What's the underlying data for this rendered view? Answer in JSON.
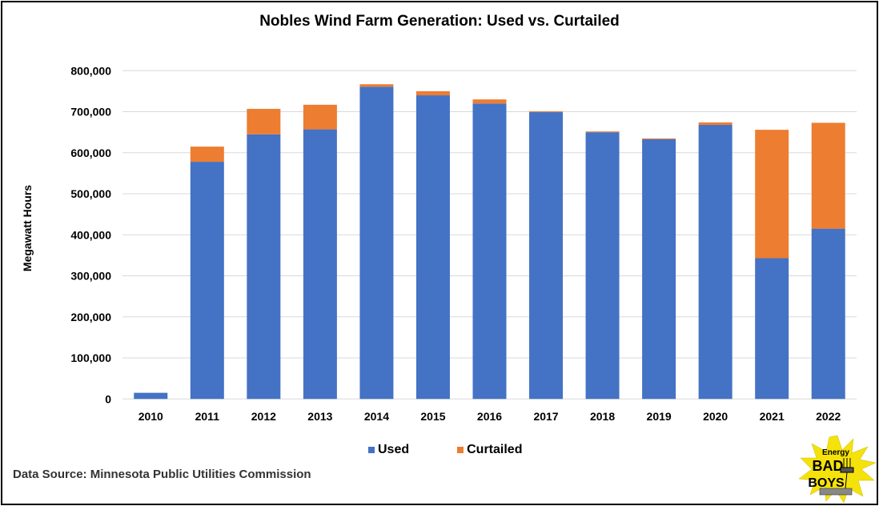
{
  "chart_data": {
    "type": "bar",
    "stacked": true,
    "title": "Nobles Wind Farm Generation: Used vs. Curtailed",
    "xlabel": "",
    "ylabel": "Megawatt Hours",
    "ylim": [
      0,
      800000
    ],
    "yticks": [
      0,
      100000,
      200000,
      300000,
      400000,
      500000,
      600000,
      700000,
      800000
    ],
    "ytick_labels": [
      "0",
      "100,000",
      "200,000",
      "300,000",
      "400,000",
      "500,000",
      "600,000",
      "700,000",
      "800,000"
    ],
    "grid": true,
    "legend_position": "bottom",
    "categories": [
      "2010",
      "2011",
      "2012",
      "2013",
      "2014",
      "2015",
      "2016",
      "2017",
      "2018",
      "2019",
      "2020",
      "2021",
      "2022"
    ],
    "series": [
      {
        "name": "Used",
        "color": "#4472C4",
        "values": [
          15000,
          578000,
          645000,
          657000,
          761000,
          740000,
          720000,
          699000,
          650000,
          633000,
          668000,
          343000,
          415000
        ]
      },
      {
        "name": "Curtailed",
        "color": "#ED7D31",
        "values": [
          0,
          37000,
          62000,
          60000,
          6000,
          10000,
          10000,
          2000,
          2000,
          2000,
          6000,
          313000,
          258000
        ]
      }
    ]
  },
  "footer": {
    "source": "Data Source: Minnesota Public Utilities Commission"
  },
  "logo": {
    "line1": "Energy",
    "line2": "BAD",
    "line3": "BOYS"
  }
}
